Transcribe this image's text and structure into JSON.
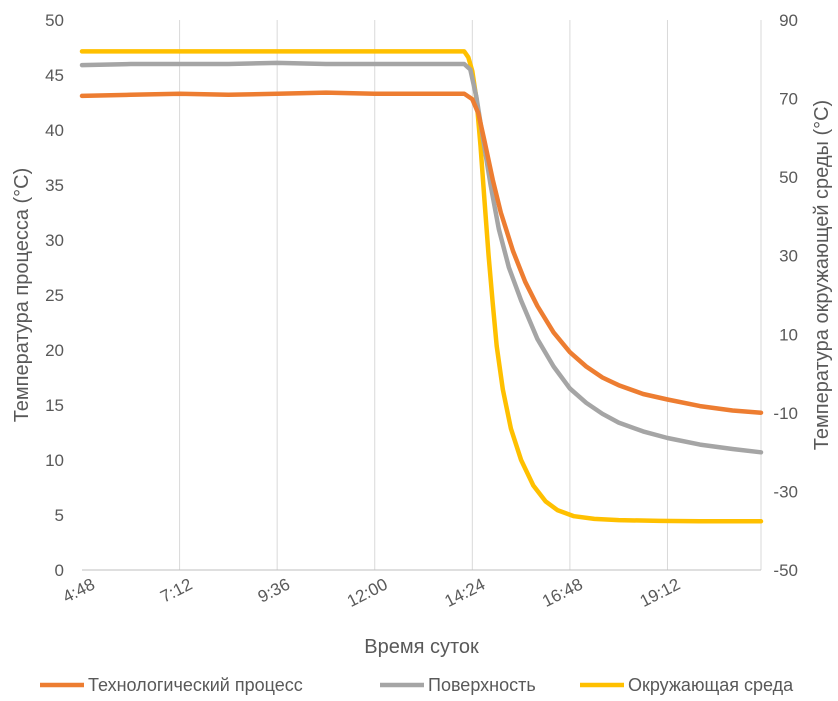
{
  "chart_data": {
    "type": "line",
    "xlabel": "Время суток",
    "ylabel": "Температура процесса (°C)",
    "y2label": "Температура окружающей среды (°C)",
    "x_ticks": [
      "4:48",
      "7:12",
      "9:36",
      "12:00",
      "14:24",
      "16:48",
      "19:12"
    ],
    "x_unit": "hours",
    "x_range": [
      4.8,
      21.5
    ],
    "ylim": [
      0,
      50
    ],
    "y_ticks": [
      "0",
      "5",
      "10",
      "15",
      "20",
      "25",
      "30",
      "35",
      "40",
      "45",
      "50"
    ],
    "y2lim": [
      -50,
      90
    ],
    "y2_ticks": [
      "-50",
      "-30",
      "-10",
      "10",
      "30",
      "50",
      "70",
      "90"
    ],
    "grid": "vertical",
    "legend_position": "bottom",
    "series": [
      {
        "name": "Технологический процесс",
        "color": "#ED7D31",
        "axis": "left",
        "points": [
          [
            4.8,
            43.1
          ],
          [
            6.0,
            43.2
          ],
          [
            7.2,
            43.3
          ],
          [
            8.4,
            43.2
          ],
          [
            9.6,
            43.3
          ],
          [
            10.8,
            43.4
          ],
          [
            12.0,
            43.3
          ],
          [
            13.2,
            43.3
          ],
          [
            14.2,
            43.3
          ],
          [
            14.4,
            42.8
          ],
          [
            14.55,
            41.5
          ],
          [
            14.7,
            39.0
          ],
          [
            14.9,
            35.5
          ],
          [
            15.1,
            32.5
          ],
          [
            15.4,
            29.0
          ],
          [
            15.7,
            26.2
          ],
          [
            16.0,
            24.0
          ],
          [
            16.4,
            21.6
          ],
          [
            16.8,
            19.8
          ],
          [
            17.2,
            18.5
          ],
          [
            17.6,
            17.5
          ],
          [
            18.0,
            16.8
          ],
          [
            18.6,
            16.0
          ],
          [
            19.2,
            15.5
          ],
          [
            20.0,
            14.9
          ],
          [
            20.8,
            14.5
          ],
          [
            21.5,
            14.3
          ]
        ]
      },
      {
        "name": "Поверхность",
        "color": "#A5A5A5",
        "axis": "left",
        "points": [
          [
            4.8,
            45.9
          ],
          [
            6.0,
            46.0
          ],
          [
            7.2,
            46.0
          ],
          [
            8.4,
            46.0
          ],
          [
            9.6,
            46.1
          ],
          [
            10.8,
            46.0
          ],
          [
            12.0,
            46.0
          ],
          [
            13.2,
            46.0
          ],
          [
            14.2,
            46.0
          ],
          [
            14.35,
            45.5
          ],
          [
            14.5,
            43.0
          ],
          [
            14.65,
            39.5
          ],
          [
            14.85,
            35.0
          ],
          [
            15.05,
            31.0
          ],
          [
            15.3,
            27.5
          ],
          [
            15.6,
            24.5
          ],
          [
            16.0,
            21.0
          ],
          [
            16.4,
            18.5
          ],
          [
            16.8,
            16.5
          ],
          [
            17.2,
            15.2
          ],
          [
            17.6,
            14.2
          ],
          [
            18.0,
            13.4
          ],
          [
            18.6,
            12.6
          ],
          [
            19.2,
            12.0
          ],
          [
            20.0,
            11.4
          ],
          [
            20.8,
            11.0
          ],
          [
            21.5,
            10.7
          ]
        ]
      },
      {
        "name": "Окружающая среда",
        "color": "#FFC000",
        "axis": "right",
        "points": [
          [
            4.8,
            82.0
          ],
          [
            7.2,
            82.0
          ],
          [
            9.6,
            82.0
          ],
          [
            12.0,
            82.0
          ],
          [
            14.2,
            82.0
          ],
          [
            14.3,
            80.5
          ],
          [
            14.4,
            77.0
          ],
          [
            14.5,
            70.0
          ],
          [
            14.6,
            58.0
          ],
          [
            14.7,
            44.0
          ],
          [
            14.8,
            30.0
          ],
          [
            14.9,
            18.0
          ],
          [
            15.0,
            7.0
          ],
          [
            15.15,
            -4.0
          ],
          [
            15.35,
            -14.0
          ],
          [
            15.6,
            -22.0
          ],
          [
            15.9,
            -28.5
          ],
          [
            16.2,
            -32.5
          ],
          [
            16.5,
            -34.8
          ],
          [
            16.9,
            -36.3
          ],
          [
            17.4,
            -37.0
          ],
          [
            18.0,
            -37.3
          ],
          [
            19.0,
            -37.5
          ],
          [
            20.0,
            -37.6
          ],
          [
            21.5,
            -37.6
          ]
        ]
      }
    ]
  }
}
